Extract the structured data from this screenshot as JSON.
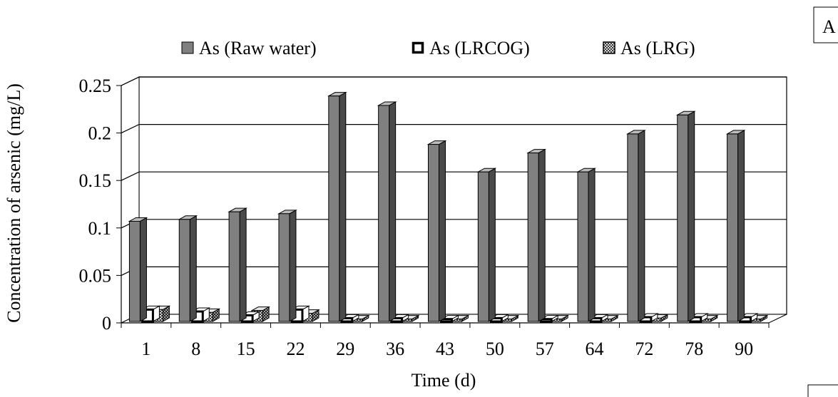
{
  "chart_data": {
    "type": "bar",
    "panel_label": "A",
    "title": "",
    "xlabel": "Time (d)",
    "ylabel": "Concentration of arsenic (mg/L)",
    "ylim": [
      0,
      0.25
    ],
    "yticks": [
      0,
      0.05,
      0.1,
      0.15,
      0.2,
      0.25
    ],
    "ytick_labels": [
      "0",
      "0.05",
      "0.1",
      "0.15",
      "0.2",
      "0.25"
    ],
    "grid": true,
    "legend_position": "top",
    "categories": [
      "1",
      "8",
      "15",
      "22",
      "29",
      "36",
      "43",
      "50",
      "57",
      "64",
      "72",
      "78",
      "90"
    ],
    "series": [
      {
        "name": "As (Raw water)",
        "color": "#808080",
        "values": [
          0.107,
          0.109,
          0.117,
          0.115,
          0.239,
          0.229,
          0.188,
          0.159,
          0.179,
          0.159,
          0.199,
          0.219,
          0.199
        ]
      },
      {
        "name": "As (LRCOG)",
        "color": "#ffffff",
        "values": [
          0.014,
          0.012,
          0.008,
          0.014,
          0.005,
          0.005,
          0.004,
          0.005,
          0.004,
          0.005,
          0.006,
          0.006,
          0.006
        ]
      },
      {
        "name": "As (LRG)",
        "color": "#9a9a9a",
        "values": [
          0.014,
          0.011,
          0.013,
          0.01,
          0.004,
          0.004,
          0.004,
          0.004,
          0.004,
          0.004,
          0.005,
          0.004,
          0.004
        ]
      }
    ]
  }
}
